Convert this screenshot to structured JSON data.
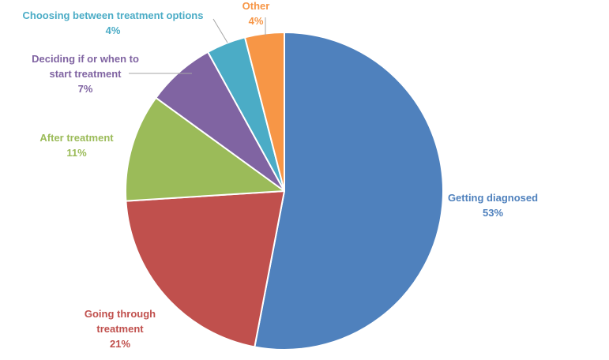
{
  "chart_data": {
    "type": "pie",
    "title": "",
    "start_angle_deg": 0,
    "direction": "clockwise",
    "legend": "none",
    "slices": [
      {
        "label_lines": [
          "Getting diagnosed"
        ],
        "pct_text": "53%",
        "value": 53,
        "color": "#4f81bd"
      },
      {
        "label_lines": [
          "Going through",
          "treatment"
        ],
        "pct_text": "21%",
        "value": 21,
        "color": "#c0504d"
      },
      {
        "label_lines": [
          "After treatment"
        ],
        "pct_text": "11%",
        "value": 11,
        "color": "#9bbb59"
      },
      {
        "label_lines": [
          "Deciding if or when to",
          "start treatment"
        ],
        "pct_text": "7%",
        "value": 7,
        "color": "#8064a2"
      },
      {
        "label_lines": [
          "Choosing between treatment options"
        ],
        "pct_text": "4%",
        "value": 4,
        "color": "#4bacc6"
      },
      {
        "label_lines": [
          "Other"
        ],
        "pct_text": "4%",
        "value": 4,
        "color": "#f79646"
      }
    ]
  }
}
